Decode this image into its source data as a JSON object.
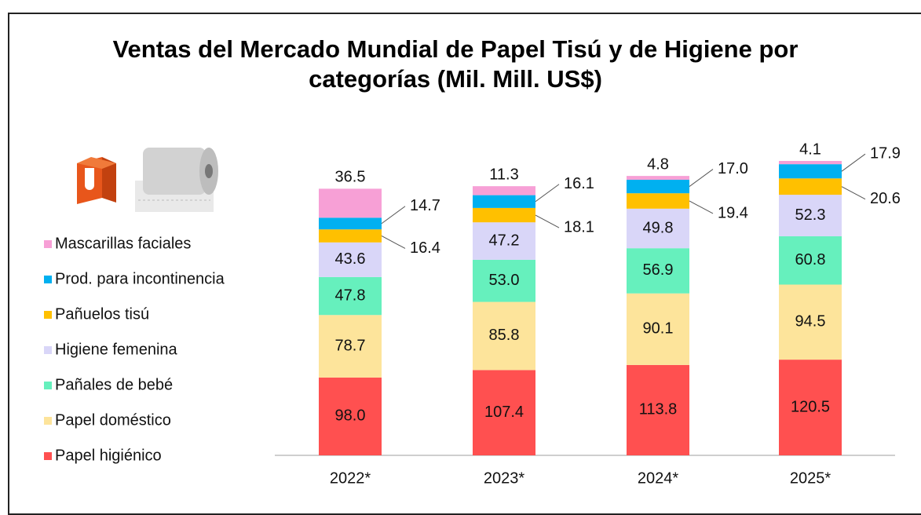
{
  "chart_data": {
    "type": "stacked-bar",
    "title": "Ventas del Mercado Mundial de Papel Tisú y de Higiene por\ncategorías (Mil. Mill. US$)",
    "categories": [
      "2022*",
      "2023*",
      "2024*",
      "2025*"
    ],
    "series": [
      {
        "name": "Papel higiénico",
        "color": "#ff5050",
        "values": [
          98.0,
          107.4,
          113.8,
          120.5
        ],
        "value_labels": [
          "98.0",
          "107.4",
          "113.8",
          "120.5"
        ]
      },
      {
        "name": "Papel doméstico",
        "color": "#fde49b",
        "values": [
          78.7,
          85.8,
          90.1,
          94.5
        ]
      },
      {
        "name": "Pañales de bebé",
        "color": "#66f0bd",
        "values": [
          47.8,
          53.0,
          56.9,
          60.8
        ],
        "value_labels": [
          "47.8",
          "53.0",
          "56.9",
          "60.8"
        ]
      },
      {
        "name": "Higiene femenina",
        "color": "#d9d6f8",
        "values": [
          43.6,
          47.2,
          49.8,
          52.3
        ]
      },
      {
        "name": "Pañuelos tisú",
        "color": "#ffc000",
        "values": [
          16.4,
          18.1,
          19.4,
          20.6
        ]
      },
      {
        "name": "Prod. para incontinencia",
        "color": "#00b0f0",
        "values": [
          14.7,
          16.1,
          17.0,
          17.9
        ],
        "value_labels": [
          "14.7",
          "16.1",
          "17.0",
          "17.9"
        ]
      },
      {
        "name": "Mascarillas faciales",
        "color": "#f7a0d6",
        "values": [
          36.5,
          11.3,
          4.8,
          4.1
        ]
      }
    ]
  }
}
